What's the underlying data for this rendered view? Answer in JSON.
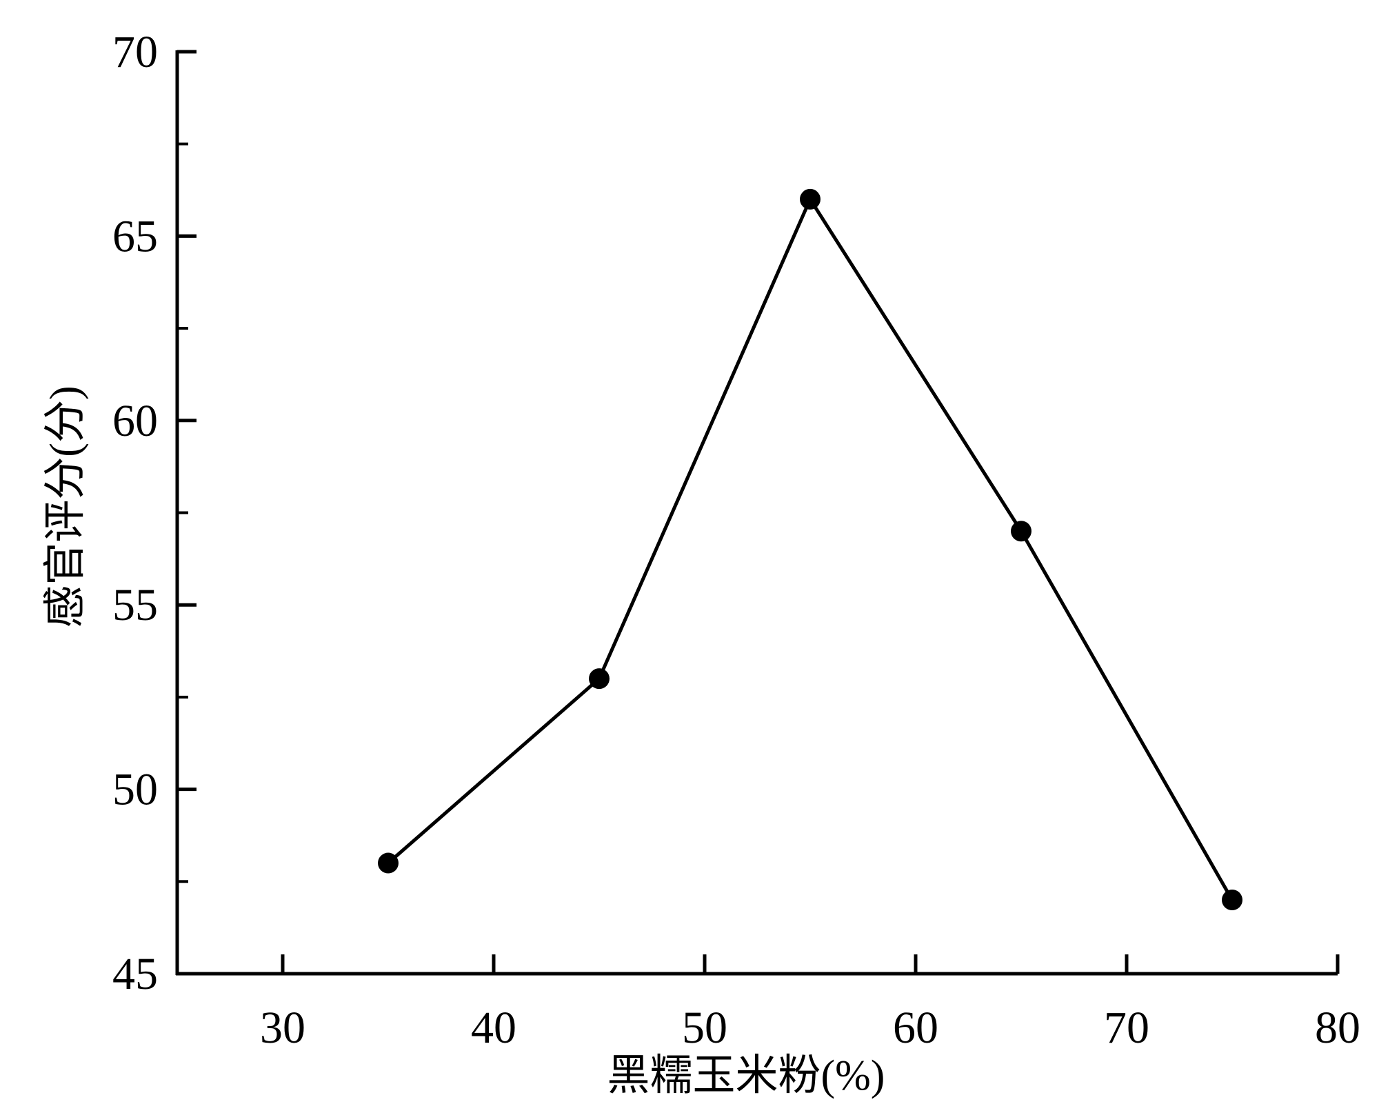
{
  "chart_data": {
    "type": "line",
    "title": "",
    "xlabel": "黑糯玉米粉(%)",
    "ylabel": "感官评分(分)",
    "xlim": [
      25,
      80
    ],
    "ylim": [
      45,
      70
    ],
    "xticks": [
      30,
      40,
      50,
      60,
      70,
      80
    ],
    "yticks": [
      45,
      50,
      55,
      60,
      65,
      70
    ],
    "grid": false,
    "legend": "none",
    "series": [
      {
        "x": [
          35,
          45,
          55,
          65,
          75
        ],
        "values": [
          48,
          53,
          66,
          57,
          47
        ],
        "color": "#000000",
        "marker": "circle"
      }
    ]
  }
}
